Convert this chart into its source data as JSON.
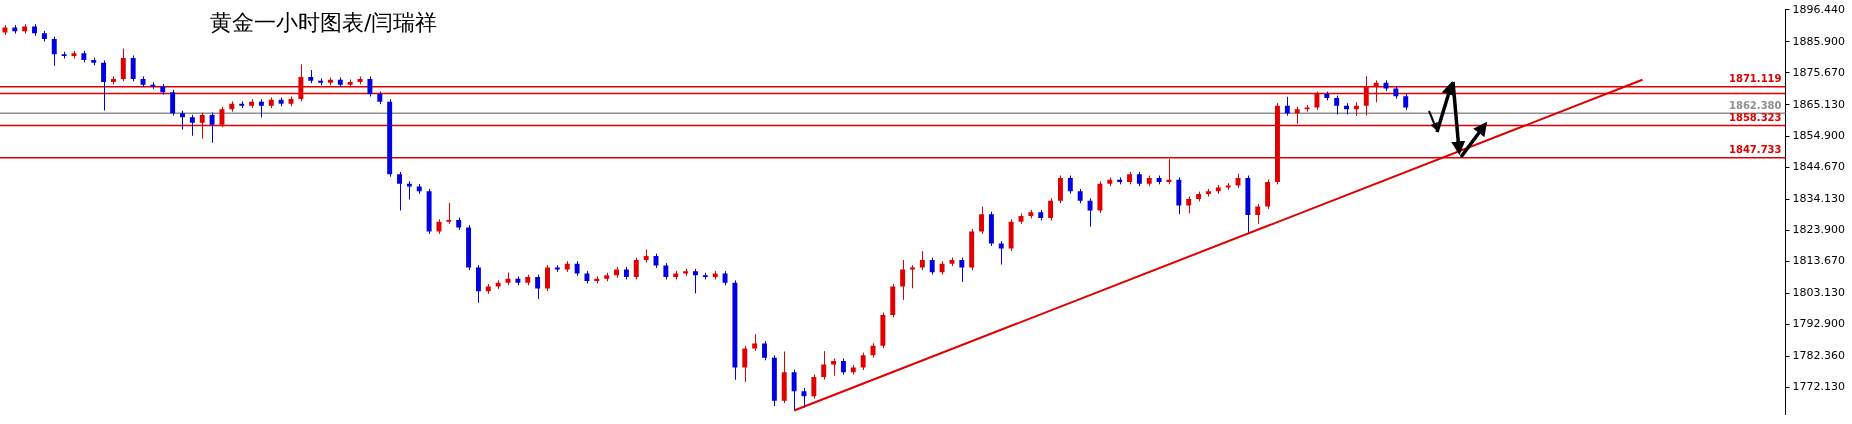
{
  "chart_data": {
    "type": "candlestick",
    "title": "黄金一小时图表/闫瑞祥",
    "tick_labels": "y",
    "categories": [
      null,
      null,
      null,
      null,
      null,
      null,
      null,
      null,
      null,
      null,
      null,
      null,
      null,
      null,
      null,
      null,
      null,
      null,
      null,
      null,
      null,
      null,
      null,
      null,
      null,
      null,
      null,
      null,
      null,
      null,
      null,
      null,
      null,
      null,
      null,
      null,
      null,
      null,
      null,
      null,
      null,
      null,
      null,
      null,
      null,
      null,
      null,
      null,
      null,
      null,
      null,
      null,
      null,
      null,
      null,
      null,
      null,
      null,
      null,
      null,
      null,
      null,
      null,
      null,
      null,
      null,
      null,
      null,
      null,
      null,
      null,
      null,
      null,
      null,
      null,
      null,
      null,
      null,
      null,
      null,
      null,
      null,
      null,
      null,
      null,
      null,
      null,
      null,
      null,
      null,
      null,
      null,
      null,
      null,
      null,
      null,
      null,
      null,
      null,
      null,
      null,
      null,
      null,
      null,
      null,
      null,
      null,
      null,
      null,
      null,
      null,
      null,
      null,
      null,
      null,
      null,
      null,
      null,
      null,
      null,
      null,
      null,
      null,
      null,
      null,
      null,
      null,
      null,
      null,
      null,
      null,
      null,
      null,
      null,
      null,
      null,
      null,
      null,
      null,
      null,
      null,
      null,
      null,
      null,
      null,
      null,
      null,
      null,
      null,
      null,
      null,
      null,
      null,
      null,
      null,
      null,
      null,
      null,
      null,
      null,
      null,
      null,
      null,
      null,
      null,
      null,
      null,
      null,
      null,
      null,
      null,
      null,
      null,
      null,
      null,
      null,
      null,
      null,
      null,
      null,
      null
    ],
    "ylim": [
      1763.3,
      1896.5
    ],
    "yticks": [
      {
        "value": 1772.13,
        "label": "1772.130"
      },
      {
        "value": 1782.36,
        "label": "1782.360"
      },
      {
        "value": 1792.9,
        "label": "1792.900"
      },
      {
        "value": 1803.13,
        "label": "1803.130"
      },
      {
        "value": 1813.67,
        "label": "1813.670"
      },
      {
        "value": 1823.9,
        "label": "1823.900"
      },
      {
        "value": 1834.13,
        "label": "1834.130"
      },
      {
        "value": 1844.67,
        "label": "1844.670"
      },
      {
        "value": 1854.9,
        "label": "1854.900"
      },
      {
        "value": 1865.13,
        "label": "1865.130"
      },
      {
        "value": 1875.67,
        "label": "1875.670"
      },
      {
        "value": 1885.9,
        "label": "1885.900"
      },
      {
        "value": 1896.44,
        "label": "1896.440"
      }
    ],
    "ref_lines": [
      {
        "axis": "y",
        "value": 1871.119,
        "label": "1871.119",
        "color": "#e00000"
      },
      {
        "axis": "y",
        "value": 1868.9,
        "color": "#e00000"
      },
      {
        "axis": "y",
        "value": 1862.38,
        "label": "1862.380",
        "color": "#909090"
      },
      {
        "axis": "y",
        "value": 1858.323,
        "label": "1858.323",
        "color": "#e00000"
      },
      {
        "axis": "y",
        "value": 1847.733,
        "label": "1847.733",
        "color": "#e00000"
      }
    ],
    "series": [
      {
        "ohlc": [
          [
            1889.0,
            1891.4,
            1888.2,
            1890.6
          ],
          [
            1890.6,
            1891.4,
            1888.6,
            1889.4
          ],
          [
            1889.4,
            1891.7,
            1888.6,
            1890.9
          ],
          [
            1890.9,
            1891.7,
            1887.9,
            1888.7
          ],
          [
            1888.7,
            1889.5,
            1886.0,
            1886.8
          ],
          [
            1886.8,
            1887.6,
            1878.0,
            1881.8
          ],
          [
            1881.8,
            1882.6,
            1880.4,
            1881.2
          ],
          [
            1881.2,
            1882.9,
            1880.4,
            1882.1
          ],
          [
            1882.1,
            1882.9,
            1879.1,
            1879.9
          ],
          [
            1879.9,
            1880.7,
            1878.2,
            1879.0
          ],
          [
            1879.0,
            1879.8,
            1863.3,
            1872.7
          ],
          [
            1872.7,
            1874.5,
            1871.9,
            1873.7
          ],
          [
            1873.7,
            1883.7,
            1872.9,
            1880.6
          ],
          [
            1880.6,
            1881.4,
            1872.9,
            1873.7
          ],
          [
            1873.7,
            1874.5,
            1871.0,
            1871.8
          ],
          [
            1871.8,
            1872.6,
            1870.4,
            1871.2
          ],
          [
            1871.2,
            1872.0,
            1868.5,
            1869.3
          ],
          [
            1869.3,
            1870.1,
            1861.6,
            1862.4
          ],
          [
            1862.4,
            1863.2,
            1857.0,
            1861.1
          ],
          [
            1861.1,
            1861.9,
            1855.0,
            1859.3
          ],
          [
            1859.3,
            1862.6,
            1854.0,
            1861.8
          ],
          [
            1861.8,
            1862.6,
            1852.7,
            1858.6
          ],
          [
            1858.6,
            1864.5,
            1857.8,
            1863.7
          ],
          [
            1863.7,
            1866.3,
            1862.9,
            1865.5
          ],
          [
            1865.5,
            1866.3,
            1864.1,
            1864.9
          ],
          [
            1864.9,
            1867.0,
            1864.1,
            1866.2
          ],
          [
            1866.2,
            1867.0,
            1861.0,
            1864.9
          ],
          [
            1864.9,
            1867.6,
            1864.1,
            1866.8
          ],
          [
            1866.8,
            1867.6,
            1864.7,
            1865.5
          ],
          [
            1865.5,
            1867.9,
            1864.7,
            1867.1
          ],
          [
            1867.1,
            1878.5,
            1866.3,
            1874.3
          ],
          [
            1874.3,
            1876.6,
            1872.3,
            1873.1
          ],
          [
            1873.1,
            1873.9,
            1871.6,
            1872.4
          ],
          [
            1872.4,
            1874.2,
            1871.6,
            1873.4
          ],
          [
            1873.4,
            1874.2,
            1871.0,
            1871.8
          ],
          [
            1871.8,
            1873.5,
            1871.0,
            1872.7
          ],
          [
            1872.7,
            1874.5,
            1871.9,
            1873.7
          ],
          [
            1873.7,
            1874.5,
            1867.9,
            1868.7
          ],
          [
            1868.7,
            1869.5,
            1865.4,
            1866.2
          ],
          [
            1866.2,
            1867.0,
            1841.5,
            1842.3
          ],
          [
            1842.3,
            1843.1,
            1830.4,
            1839.2
          ],
          [
            1839.2,
            1840.0,
            1834.0,
            1838.3
          ],
          [
            1838.3,
            1839.1,
            1835.9,
            1836.7
          ],
          [
            1836.7,
            1837.5,
            1822.7,
            1823.5
          ],
          [
            1823.5,
            1827.5,
            1822.7,
            1826.7
          ],
          [
            1826.7,
            1832.9,
            1826.0,
            1827.3
          ],
          [
            1827.3,
            1828.1,
            1824.0,
            1824.8
          ],
          [
            1824.8,
            1825.6,
            1810.8,
            1811.6
          ],
          [
            1811.6,
            1812.4,
            1800.0,
            1803.8
          ],
          [
            1803.8,
            1806.2,
            1803.0,
            1805.4
          ],
          [
            1805.4,
            1807.4,
            1804.6,
            1806.6
          ],
          [
            1806.6,
            1810.0,
            1805.8,
            1807.9
          ],
          [
            1807.9,
            1808.7,
            1805.8,
            1806.6
          ],
          [
            1806.6,
            1809.3,
            1805.8,
            1808.5
          ],
          [
            1808.5,
            1809.3,
            1801.3,
            1804.7
          ],
          [
            1804.7,
            1812.4,
            1803.9,
            1811.6
          ],
          [
            1811.6,
            1812.4,
            1810.2,
            1811.0
          ],
          [
            1811.0,
            1813.7,
            1810.2,
            1812.9
          ],
          [
            1812.9,
            1813.7,
            1808.9,
            1809.7
          ],
          [
            1809.7,
            1810.5,
            1806.4,
            1807.2
          ],
          [
            1807.2,
            1808.7,
            1806.4,
            1807.9
          ],
          [
            1807.9,
            1809.9,
            1807.1,
            1809.1
          ],
          [
            1809.1,
            1811.8,
            1808.3,
            1811.0
          ],
          [
            1811.0,
            1811.8,
            1807.7,
            1808.5
          ],
          [
            1808.5,
            1814.9,
            1807.7,
            1814.1
          ],
          [
            1814.1,
            1817.6,
            1813.3,
            1815.4
          ],
          [
            1815.4,
            1816.2,
            1811.5,
            1812.3
          ],
          [
            1812.3,
            1813.1,
            1807.7,
            1808.5
          ],
          [
            1808.5,
            1810.5,
            1807.7,
            1809.7
          ],
          [
            1809.7,
            1811.2,
            1808.9,
            1810.4
          ],
          [
            1810.4,
            1811.2,
            1803.1,
            1809.1
          ],
          [
            1809.1,
            1809.9,
            1807.7,
            1808.5
          ],
          [
            1808.5,
            1810.5,
            1807.7,
            1809.7
          ],
          [
            1809.7,
            1810.5,
            1805.8,
            1806.6
          ],
          [
            1806.6,
            1807.4,
            1774.7,
            1778.7
          ],
          [
            1778.7,
            1785.8,
            1774.0,
            1785.0
          ],
          [
            1785.0,
            1789.7,
            1784.2,
            1786.6
          ],
          [
            1786.6,
            1787.4,
            1781.1,
            1781.9
          ],
          [
            1781.9,
            1782.7,
            1766.0,
            1767.8
          ],
          [
            1767.8,
            1784.0,
            1767.0,
            1777.2
          ],
          [
            1777.2,
            1778.0,
            1764.6,
            1770.9
          ],
          [
            1770.9,
            1772.0,
            1765.5,
            1769.3
          ],
          [
            1769.3,
            1776.4,
            1768.5,
            1775.6
          ],
          [
            1775.6,
            1784.1,
            1774.8,
            1779.7
          ],
          [
            1779.7,
            1781.7,
            1776.0,
            1780.9
          ],
          [
            1780.9,
            1781.7,
            1776.4,
            1777.2
          ],
          [
            1777.2,
            1779.5,
            1776.4,
            1778.7
          ],
          [
            1778.7,
            1783.6,
            1777.9,
            1782.8
          ],
          [
            1782.8,
            1786.7,
            1782.0,
            1785.9
          ],
          [
            1785.9,
            1796.8,
            1785.1,
            1796.0
          ],
          [
            1796.0,
            1806.2,
            1795.2,
            1805.4
          ],
          [
            1805.4,
            1814.1,
            1801.0,
            1811.0
          ],
          [
            1811.0,
            1812.4,
            1804.8,
            1811.6
          ],
          [
            1811.6,
            1817.0,
            1810.8,
            1814.1
          ],
          [
            1814.1,
            1814.9,
            1809.3,
            1810.1
          ],
          [
            1810.1,
            1813.7,
            1809.3,
            1812.9
          ],
          [
            1812.9,
            1814.9,
            1812.1,
            1814.1
          ],
          [
            1814.1,
            1814.9,
            1806.9,
            1811.6
          ],
          [
            1811.6,
            1824.3,
            1810.8,
            1823.5
          ],
          [
            1823.5,
            1831.7,
            1822.7,
            1829.2
          ],
          [
            1829.2,
            1830.0,
            1818.7,
            1819.5
          ],
          [
            1819.5,
            1820.3,
            1812.6,
            1817.9
          ],
          [
            1817.9,
            1827.5,
            1817.1,
            1826.7
          ],
          [
            1826.7,
            1829.4,
            1825.9,
            1828.6
          ],
          [
            1828.6,
            1830.6,
            1827.8,
            1829.8
          ],
          [
            1829.8,
            1830.6,
            1827.1,
            1827.9
          ],
          [
            1827.9,
            1834.4,
            1827.1,
            1833.6
          ],
          [
            1833.6,
            1841.9,
            1832.8,
            1841.1
          ],
          [
            1841.1,
            1841.9,
            1835.9,
            1836.7
          ],
          [
            1836.7,
            1837.5,
            1832.8,
            1833.6
          ],
          [
            1833.6,
            1834.4,
            1825.1,
            1830.4
          ],
          [
            1830.4,
            1840.0,
            1829.6,
            1839.2
          ],
          [
            1839.2,
            1841.3,
            1838.4,
            1840.5
          ],
          [
            1840.5,
            1841.3,
            1839.0,
            1839.8
          ],
          [
            1839.8,
            1843.1,
            1839.0,
            1842.3
          ],
          [
            1842.3,
            1843.1,
            1838.4,
            1839.2
          ],
          [
            1839.2,
            1841.9,
            1838.4,
            1841.1
          ],
          [
            1841.1,
            1841.9,
            1839.0,
            1839.8
          ],
          [
            1839.8,
            1847.3,
            1839.0,
            1840.5
          ],
          [
            1840.5,
            1841.3,
            1829.2,
            1832.0
          ],
          [
            1832.0,
            1835.0,
            1829.5,
            1834.2
          ],
          [
            1834.2,
            1836.6,
            1833.4,
            1835.8
          ],
          [
            1835.8,
            1837.5,
            1835.0,
            1836.7
          ],
          [
            1836.7,
            1838.8,
            1835.9,
            1838.0
          ],
          [
            1838.0,
            1839.4,
            1837.2,
            1838.6
          ],
          [
            1838.6,
            1842.5,
            1837.8,
            1841.1
          ],
          [
            1841.1,
            1841.9,
            1822.6,
            1828.9
          ],
          [
            1828.9,
            1832.5,
            1826.0,
            1831.7
          ],
          [
            1831.7,
            1840.6,
            1830.9,
            1839.8
          ],
          [
            1839.8,
            1865.7,
            1839.0,
            1864.9
          ],
          [
            1864.9,
            1867.8,
            1861.6,
            1862.4
          ],
          [
            1862.4,
            1864.5,
            1859.0,
            1863.7
          ],
          [
            1863.7,
            1865.1,
            1862.9,
            1864.3
          ],
          [
            1864.3,
            1869.5,
            1863.5,
            1868.7
          ],
          [
            1868.7,
            1869.5,
            1866.6,
            1867.4
          ],
          [
            1867.4,
            1868.2,
            1862.0,
            1864.9
          ],
          [
            1864.9,
            1865.7,
            1862.0,
            1863.7
          ],
          [
            1863.7,
            1866.0,
            1861.5,
            1864.9
          ],
          [
            1864.9,
            1874.6,
            1861.6,
            1871.2
          ],
          [
            1871.2,
            1873.2,
            1866.0,
            1872.4
          ],
          [
            1872.4,
            1873.2,
            1869.7,
            1870.5
          ],
          [
            1870.5,
            1871.3,
            1867.2,
            1868.0
          ],
          [
            1868.0,
            1868.8,
            1863.5,
            1864.3
          ],
          null,
          null,
          null,
          null,
          null,
          null,
          null,
          null,
          null,
          null,
          null,
          null,
          null,
          null,
          null,
          null,
          null,
          null,
          null,
          null,
          null,
          null,
          null,
          null,
          null,
          null,
          null,
          null,
          null,
          null,
          null,
          null,
          null,
          null,
          null,
          null,
          null,
          null
        ],
        "colors": [
          "#e00000",
          "#0000e0",
          "#e00000",
          "#0000e0",
          "#0000e0",
          "#0000e0",
          "#0000e0",
          "#e00000",
          "#0000e0",
          "#0000e0",
          "#0000e0",
          "#e00000",
          "#e00000",
          "#0000e0",
          "#0000e0",
          "#0000e0",
          "#0000e0",
          "#0000e0",
          "#0000e0",
          "#0000e0",
          "#e00000",
          "#0000e0",
          "#e00000",
          "#e00000",
          "#0000e0",
          "#e00000",
          "#0000e0",
          "#e00000",
          "#0000e0",
          "#e00000",
          "#e00000",
          "#0000e0",
          "#0000e0",
          "#e00000",
          "#0000e0",
          "#e00000",
          "#e00000",
          "#0000e0",
          "#0000e0",
          "#0000e0",
          "#0000e0",
          "#0000e0",
          "#0000e0",
          "#0000e0",
          "#e00000",
          "#e00000",
          "#0000e0",
          "#0000e0",
          "#0000e0",
          "#e00000",
          "#e00000",
          "#e00000",
          "#0000e0",
          "#e00000",
          "#0000e0",
          "#e00000",
          "#0000e0",
          "#e00000",
          "#0000e0",
          "#0000e0",
          "#e00000",
          "#e00000",
          "#e00000",
          "#0000e0",
          "#e00000",
          "#e00000",
          "#0000e0",
          "#0000e0",
          "#e00000",
          "#e00000",
          "#0000e0",
          "#0000e0",
          "#e00000",
          "#0000e0",
          "#0000e0",
          "#e00000",
          "#e00000",
          "#0000e0",
          "#0000e0",
          "#e00000",
          "#0000e0",
          "#0000e0",
          "#e00000",
          "#e00000",
          "#e00000",
          "#0000e0",
          "#e00000",
          "#e00000",
          "#e00000",
          "#e00000",
          "#e00000",
          "#e00000",
          "#e00000",
          "#e00000",
          "#0000e0",
          "#e00000",
          "#e00000",
          "#0000e0",
          "#e00000",
          "#e00000",
          "#0000e0",
          "#0000e0",
          "#e00000",
          "#e00000",
          "#e00000",
          "#0000e0",
          "#e00000",
          "#e00000",
          "#0000e0",
          "#0000e0",
          "#0000e0",
          "#e00000",
          "#e00000",
          "#0000e0",
          "#e00000",
          "#0000e0",
          "#e00000",
          "#0000e0",
          "#e00000",
          "#0000e0",
          "#e00000",
          "#e00000",
          "#e00000",
          "#e00000",
          "#e00000",
          "#e00000",
          "#0000e0",
          "#e00000",
          "#e00000",
          "#e00000",
          "#0000e0",
          "#e00000",
          "#e00000",
          "#e00000",
          "#0000e0",
          "#0000e0",
          "#0000e0",
          "#e00000",
          "#e00000",
          "#e00000",
          "#0000e0",
          "#0000e0",
          "#0000e0",
          null,
          null,
          null,
          null,
          null,
          null,
          null,
          null,
          null,
          null,
          null,
          null,
          null,
          null,
          null,
          null,
          null,
          null,
          null,
          null,
          null,
          null,
          null,
          null,
          null,
          null,
          null,
          null,
          null,
          null,
          null,
          null,
          null,
          null,
          null,
          null,
          null,
          null
        ]
      },
      {
        "type": "line",
        "color": "#e00000",
        "values": [
          null,
          null,
          null,
          null,
          null,
          null,
          null,
          null,
          null,
          null,
          null,
          null,
          null,
          null,
          null,
          null,
          null,
          null,
          null,
          null,
          null,
          null,
          null,
          null,
          null,
          null,
          null,
          null,
          null,
          null,
          null,
          null,
          null,
          null,
          null,
          null,
          null,
          null,
          null,
          null,
          null,
          null,
          null,
          null,
          null,
          null,
          null,
          null,
          null,
          null,
          null,
          null,
          null,
          null,
          null,
          null,
          null,
          null,
          null,
          null,
          null,
          null,
          null,
          null,
          null,
          null,
          null,
          null,
          null,
          null,
          null,
          null,
          null,
          null,
          null,
          null,
          null,
          null,
          null,
          null,
          1764.6,
          null,
          null,
          null,
          null,
          null,
          null,
          null,
          null,
          null,
          null,
          null,
          null,
          null,
          null,
          null,
          null,
          null,
          null,
          null,
          null,
          null,
          null,
          null,
          null,
          null,
          null,
          null,
          null,
          null,
          null,
          null,
          null,
          null,
          null,
          null,
          null,
          null,
          null,
          null,
          null,
          null,
          null,
          null,
          null,
          null,
          null,
          null,
          null,
          null,
          null,
          null,
          null,
          null,
          null,
          null,
          null,
          null,
          null,
          null,
          null,
          null,
          null,
          null,
          null,
          null,
          null,
          null,
          null,
          null,
          null,
          null,
          null,
          null,
          null,
          null,
          null,
          null,
          null,
          null,
          null,
          null,
          null,
          null,
          null,
          null,
          1873.4,
          null,
          null,
          null,
          null,
          null,
          null,
          null,
          null,
          null,
          null,
          null,
          null,
          null,
          null
        ]
      }
    ]
  }
}
